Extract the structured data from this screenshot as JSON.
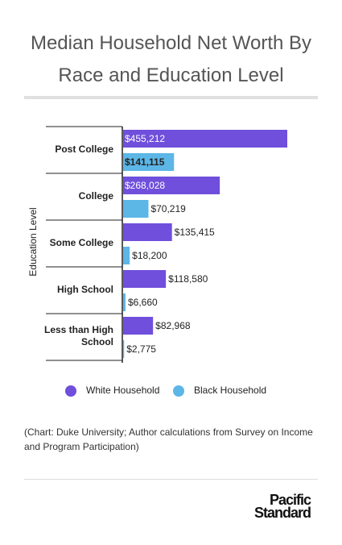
{
  "chart_data": {
    "type": "bar",
    "orientation": "horizontal",
    "title": "Median Household Net Worth By Race and Education Level",
    "y_label": "Education Level",
    "categories": [
      "Post College",
      "College",
      "Some College",
      "High School",
      "Less than High School"
    ],
    "series": [
      {
        "name": "White Household",
        "color": "#6f4fdb",
        "values": [
          455212,
          268028,
          135415,
          118580,
          82968
        ],
        "value_labels": [
          "$455,212",
          "$268,028",
          "$135,415",
          "$118,580",
          "$82,968"
        ]
      },
      {
        "name": "Black Household",
        "color": "#5cb6e6",
        "values": [
          141115,
          70219,
          18200,
          6660,
          2775
        ],
        "value_labels": [
          "$141,115",
          "$70,219",
          "$18,200",
          "$6,660",
          "$2,775"
        ]
      }
    ],
    "source": "(Chart: Duke University; Author calculations from Survey on Income and Program Participation)",
    "logo": "Pacific Standard"
  }
}
